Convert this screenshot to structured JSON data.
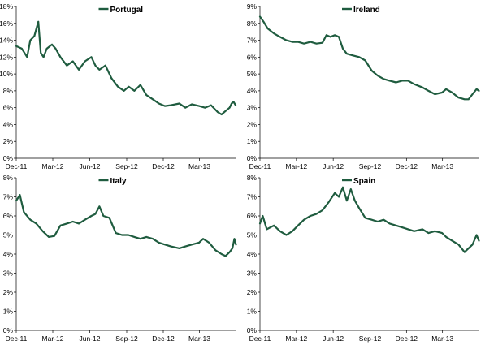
{
  "chart_data": [
    {
      "type": "line",
      "title": "",
      "series": [
        {
          "name": "Portugal",
          "x": [
            "2011-12-01",
            "2011-12-15",
            "2011-12-28",
            "2012-01-05",
            "2012-01-15",
            "2012-01-25",
            "2012-01-31",
            "2012-02-07",
            "2012-02-15",
            "2012-02-28",
            "2012-03-08",
            "2012-03-20",
            "2012-04-05",
            "2012-04-20",
            "2012-05-05",
            "2012-05-20",
            "2012-06-05",
            "2012-06-15",
            "2012-06-25",
            "2012-07-10",
            "2012-07-25",
            "2012-08-10",
            "2012-08-25",
            "2012-09-06",
            "2012-09-20",
            "2012-10-05",
            "2012-10-20",
            "2012-11-05",
            "2012-11-20",
            "2012-12-05",
            "2012-12-20",
            "2013-01-10",
            "2013-01-25",
            "2013-02-10",
            "2013-02-28",
            "2013-03-15",
            "2013-03-30",
            "2013-04-15",
            "2013-04-25",
            "2013-05-05",
            "2013-05-15",
            "2013-05-20",
            "2013-05-25",
            "2013-05-30"
          ],
          "values": [
            13.3,
            13.0,
            12.0,
            14.0,
            14.5,
            16.2,
            12.5,
            12.0,
            13.0,
            13.5,
            13.0,
            12.0,
            11.0,
            11.5,
            10.5,
            11.5,
            12.0,
            11.0,
            10.5,
            11.0,
            9.5,
            8.5,
            8.0,
            8.5,
            8.0,
            8.7,
            7.5,
            7.0,
            6.5,
            6.2,
            6.3,
            6.5,
            6.0,
            6.4,
            6.2,
            6.0,
            6.3,
            5.5,
            5.2,
            5.6,
            6.0,
            6.5,
            6.7,
            6.3
          ]
        }
      ],
      "ylim": [
        0,
        18
      ],
      "yticks": [
        "0%",
        "2%",
        "4%",
        "6%",
        "8%",
        "10%",
        "12%",
        "14%",
        "16%",
        "18%"
      ],
      "xticks": [
        "Dec-11",
        "Mar-12",
        "Jun-12",
        "Sep-12",
        "Dec-12",
        "Mar-13"
      ],
      "xlim": [
        "2011-12-01",
        "2013-06-01"
      ],
      "legend": "top-center",
      "grid": false
    },
    {
      "type": "line",
      "title": "",
      "series": [
        {
          "name": "Ireland",
          "x": [
            "2011-12-01",
            "2011-12-10",
            "2011-12-20",
            "2012-01-05",
            "2012-01-20",
            "2012-02-05",
            "2012-02-20",
            "2012-03-05",
            "2012-03-20",
            "2012-04-05",
            "2012-04-20",
            "2012-05-05",
            "2012-05-15",
            "2012-05-25",
            "2012-06-05",
            "2012-06-15",
            "2012-06-25",
            "2012-07-05",
            "2012-07-20",
            "2012-08-05",
            "2012-08-20",
            "2012-09-05",
            "2012-09-20",
            "2012-10-05",
            "2012-10-20",
            "2012-11-05",
            "2012-11-20",
            "2012-12-05",
            "2012-12-20",
            "2013-01-10",
            "2013-01-25",
            "2013-02-10",
            "2013-02-28",
            "2013-03-10",
            "2013-03-25",
            "2013-04-10",
            "2013-04-25",
            "2013-05-05",
            "2013-05-15",
            "2013-05-25",
            "2013-05-31"
          ],
          "values": [
            8.4,
            8.1,
            7.7,
            7.4,
            7.2,
            7.0,
            6.9,
            6.9,
            6.8,
            6.9,
            6.8,
            6.85,
            7.3,
            7.2,
            7.3,
            7.2,
            6.5,
            6.2,
            6.1,
            6.0,
            5.8,
            5.2,
            4.9,
            4.7,
            4.6,
            4.5,
            4.6,
            4.6,
            4.4,
            4.2,
            4.0,
            3.8,
            3.9,
            4.1,
            3.9,
            3.6,
            3.5,
            3.5,
            3.8,
            4.1,
            4.0
          ]
        }
      ],
      "ylim": [
        0,
        9
      ],
      "yticks": [
        "0%",
        "1%",
        "2%",
        "3%",
        "4%",
        "5%",
        "6%",
        "7%",
        "8%",
        "9%"
      ],
      "xticks": [
        "Dec-11",
        "Mar-12",
        "Jun-12",
        "Sep-12",
        "Dec-12",
        "Mar-13"
      ],
      "xlim": [
        "2011-12-01",
        "2013-06-01"
      ],
      "legend": "top-center",
      "grid": false
    },
    {
      "type": "line",
      "title": "",
      "series": [
        {
          "name": "Italy",
          "x": [
            "2011-12-01",
            "2011-12-10",
            "2011-12-20",
            "2012-01-05",
            "2012-01-20",
            "2012-02-05",
            "2012-02-20",
            "2012-03-05",
            "2012-03-20",
            "2012-04-05",
            "2012-04-20",
            "2012-05-05",
            "2012-05-20",
            "2012-06-05",
            "2012-06-15",
            "2012-06-25",
            "2012-07-05",
            "2012-07-20",
            "2012-08-05",
            "2012-08-20",
            "2012-09-05",
            "2012-09-20",
            "2012-10-05",
            "2012-10-20",
            "2012-11-05",
            "2012-11-20",
            "2012-12-05",
            "2012-12-20",
            "2013-01-10",
            "2013-01-25",
            "2013-02-10",
            "2013-02-28",
            "2013-03-10",
            "2013-03-25",
            "2013-04-10",
            "2013-04-25",
            "2013-05-05",
            "2013-05-15",
            "2013-05-22",
            "2013-05-27",
            "2013-05-31"
          ],
          "values": [
            6.8,
            7.1,
            6.2,
            5.8,
            5.6,
            5.2,
            4.9,
            4.95,
            5.5,
            5.6,
            5.7,
            5.6,
            5.8,
            6.0,
            6.1,
            6.5,
            6.0,
            5.9,
            5.1,
            5.0,
            5.0,
            4.9,
            4.8,
            4.9,
            4.8,
            4.6,
            4.5,
            4.4,
            4.3,
            4.4,
            4.5,
            4.6,
            4.8,
            4.6,
            4.2,
            4.0,
            3.9,
            4.1,
            4.3,
            4.8,
            4.5
          ]
        }
      ],
      "ylim": [
        0,
        8
      ],
      "yticks": [
        "0%",
        "1%",
        "2%",
        "3%",
        "4%",
        "5%",
        "6%",
        "7%",
        "8%"
      ],
      "xticks": [
        "Dec-11",
        "Mar-12",
        "Jun-12",
        "Sep-12",
        "Dec-12",
        "Mar-13"
      ],
      "xlim": [
        "2011-12-01",
        "2013-06-01"
      ],
      "legend": "top-center",
      "grid": false
    },
    {
      "type": "line",
      "title": "",
      "series": [
        {
          "name": "Spain",
          "x": [
            "2011-12-01",
            "2011-12-08",
            "2011-12-18",
            "2012-01-05",
            "2012-01-20",
            "2012-02-05",
            "2012-02-20",
            "2012-03-05",
            "2012-03-20",
            "2012-04-05",
            "2012-04-20",
            "2012-05-05",
            "2012-05-20",
            "2012-06-05",
            "2012-06-15",
            "2012-06-25",
            "2012-07-05",
            "2012-07-15",
            "2012-07-25",
            "2012-08-05",
            "2012-08-20",
            "2012-09-05",
            "2012-09-20",
            "2012-10-05",
            "2012-10-20",
            "2012-11-05",
            "2012-11-20",
            "2012-12-05",
            "2012-12-20",
            "2013-01-10",
            "2013-01-25",
            "2013-02-10",
            "2013-02-28",
            "2013-03-10",
            "2013-03-25",
            "2013-04-10",
            "2013-04-25",
            "2013-05-05",
            "2013-05-15",
            "2013-05-25",
            "2013-05-31"
          ],
          "values": [
            5.6,
            6.0,
            5.3,
            5.5,
            5.2,
            5.0,
            5.2,
            5.5,
            5.8,
            6.0,
            6.1,
            6.3,
            6.7,
            7.2,
            7.0,
            7.5,
            6.8,
            7.4,
            6.8,
            6.4,
            5.9,
            5.8,
            5.7,
            5.8,
            5.6,
            5.5,
            5.4,
            5.3,
            5.2,
            5.3,
            5.1,
            5.2,
            5.1,
            4.9,
            4.7,
            4.5,
            4.1,
            4.3,
            4.5,
            5.0,
            4.7
          ]
        }
      ],
      "ylim": [
        0,
        8
      ],
      "yticks": [
        "0%",
        "1%",
        "2%",
        "3%",
        "4%",
        "5%",
        "6%",
        "7%",
        "8%"
      ],
      "xticks": [
        "Dec-11",
        "Mar-12",
        "Jun-12",
        "Sep-12",
        "Dec-12",
        "Mar-13"
      ],
      "xlim": [
        "2011-12-01",
        "2013-06-01"
      ],
      "legend": "top-center",
      "grid": false
    }
  ],
  "colors": {
    "line": "#1f5c3f",
    "axis": "#000000",
    "text": "#000000"
  }
}
